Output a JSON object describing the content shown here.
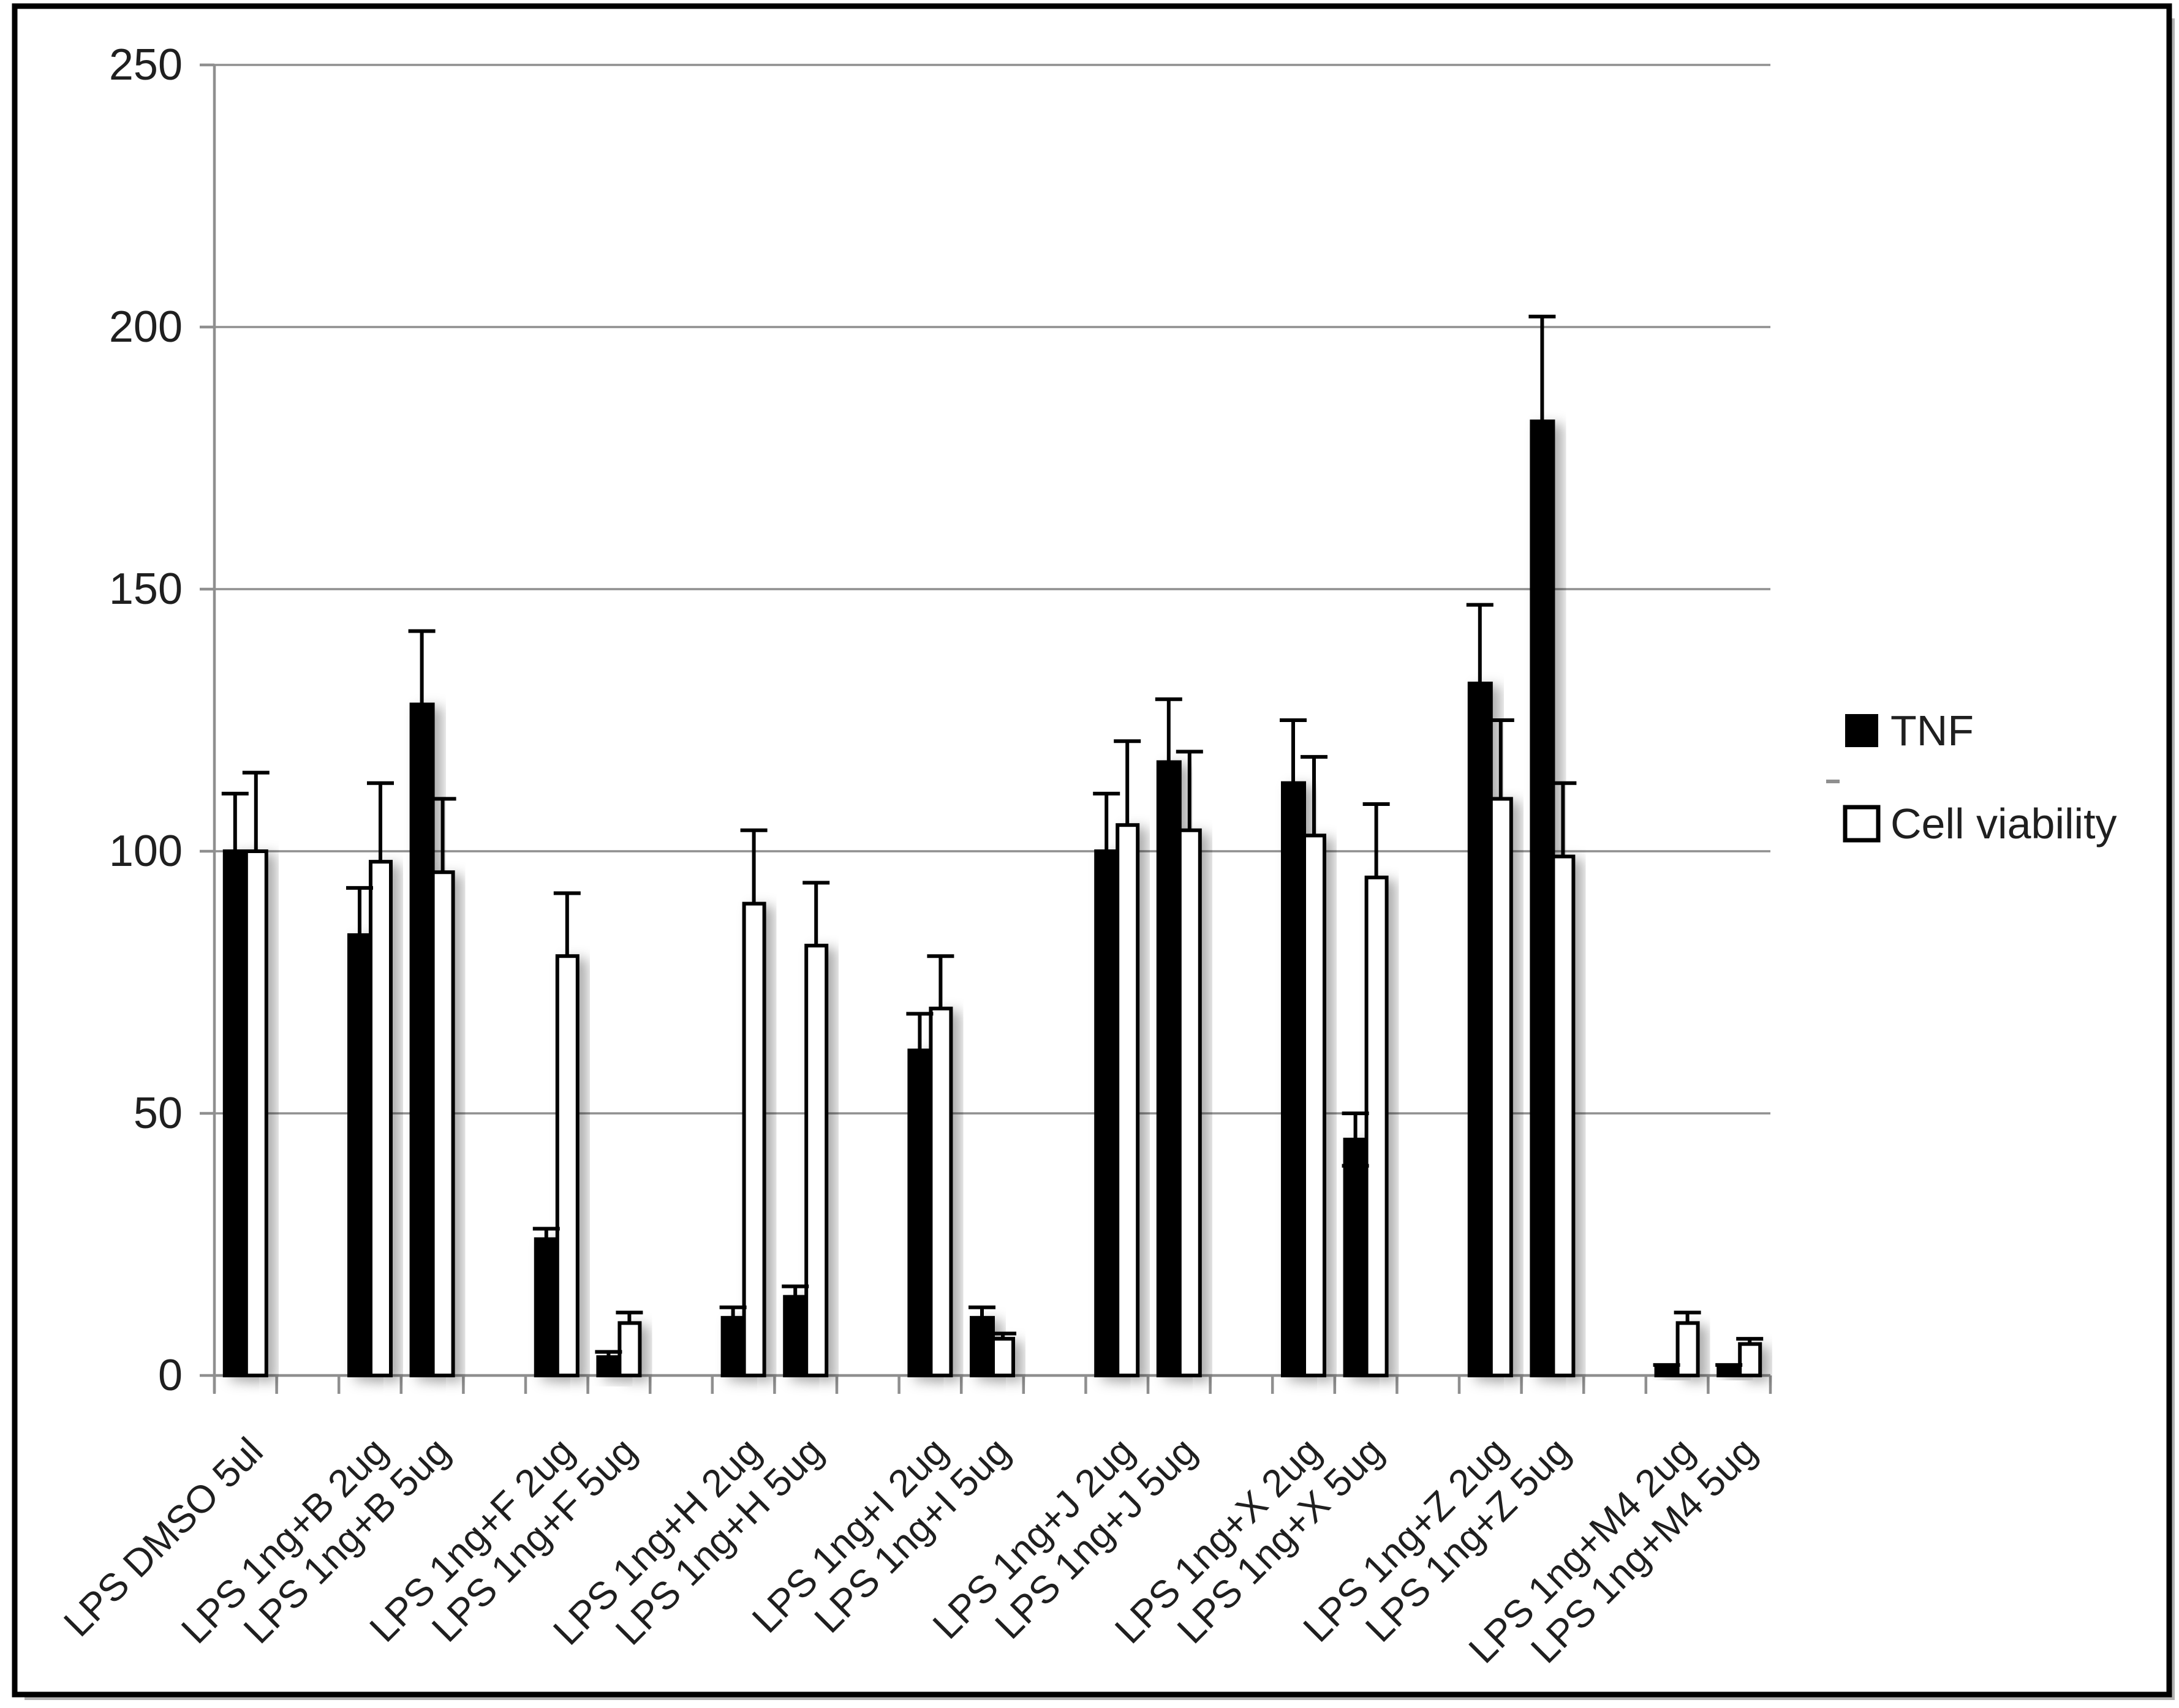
{
  "chart_data": {
    "type": "bar",
    "title": "",
    "categories": [
      "LPS DMSO 5ul",
      "LPS 1ng+B 2ug",
      "LPS 1ng+B 5ug",
      "LPS 1ng+F 2ug",
      "LPS 1ng+F 5ug",
      "LPS 1ng+H 2ug",
      "LPS 1ng+H 5ug",
      "LPS 1ng+I 2ug",
      "LPS 1ng+I 5ug",
      "LPS 1ng+J 2ug",
      "LPS 1ng+J 5ug",
      "LPS 1ng+X 2ug",
      "LPS 1ng+X 5ug",
      "LPS 1ng+Z 2ug",
      "LPS 1ng+Z 5ug",
      "LPS 1ng+M4 2ug",
      "LPS 1ng+M4 5ug"
    ],
    "series": [
      {
        "name": "TNF",
        "fill": "#000000",
        "values": [
          100,
          84,
          128,
          26,
          3.5,
          11,
          15,
          62,
          11,
          100,
          117,
          113,
          45,
          132,
          182,
          1.5,
          1.5
        ],
        "err_plus": [
          11,
          9,
          14,
          2,
          1,
          2,
          2,
          7,
          2,
          11,
          12,
          12,
          5,
          15,
          20,
          0.5,
          0.5
        ],
        "err_minus_visible": {
          "12": 5
        }
      },
      {
        "name": "Cell viability",
        "fill": "#ffffff",
        "values": [
          100,
          98,
          96,
          80,
          10,
          90,
          82,
          70,
          7,
          105,
          104,
          103,
          95,
          110,
          99,
          10,
          6
        ],
        "err_plus": [
          15,
          15,
          14,
          12,
          2,
          14,
          12,
          10,
          1,
          16,
          15,
          15,
          14,
          15,
          14,
          2,
          1
        ]
      }
    ],
    "ylim": [
      0,
      250
    ],
    "yticks": [
      0,
      50,
      100,
      150,
      200,
      250
    ],
    "grid": true,
    "legend_position": "right-middle",
    "slot_indices": [
      0,
      2,
      3,
      5,
      6,
      8,
      9,
      11,
      12,
      14,
      15,
      17,
      18,
      20,
      21,
      23,
      24
    ],
    "total_slots": 25
  },
  "axis": {
    "y_tick_labels": [
      "0",
      "50",
      "100",
      "150",
      "200",
      "250"
    ]
  },
  "legend": {
    "items": [
      {
        "label": "TNF",
        "swatch": "black-filled-square"
      },
      {
        "label": "Cell viability",
        "swatch": "white-open-square"
      }
    ]
  },
  "colors": {
    "grid": "#8f8f8f",
    "axis": "#8f8f8f",
    "bar_black": "#000000",
    "bar_white": "#ffffff",
    "text": "#1f1f1f",
    "frame": "#000000",
    "frame_shadow": "#b3b3b3"
  }
}
